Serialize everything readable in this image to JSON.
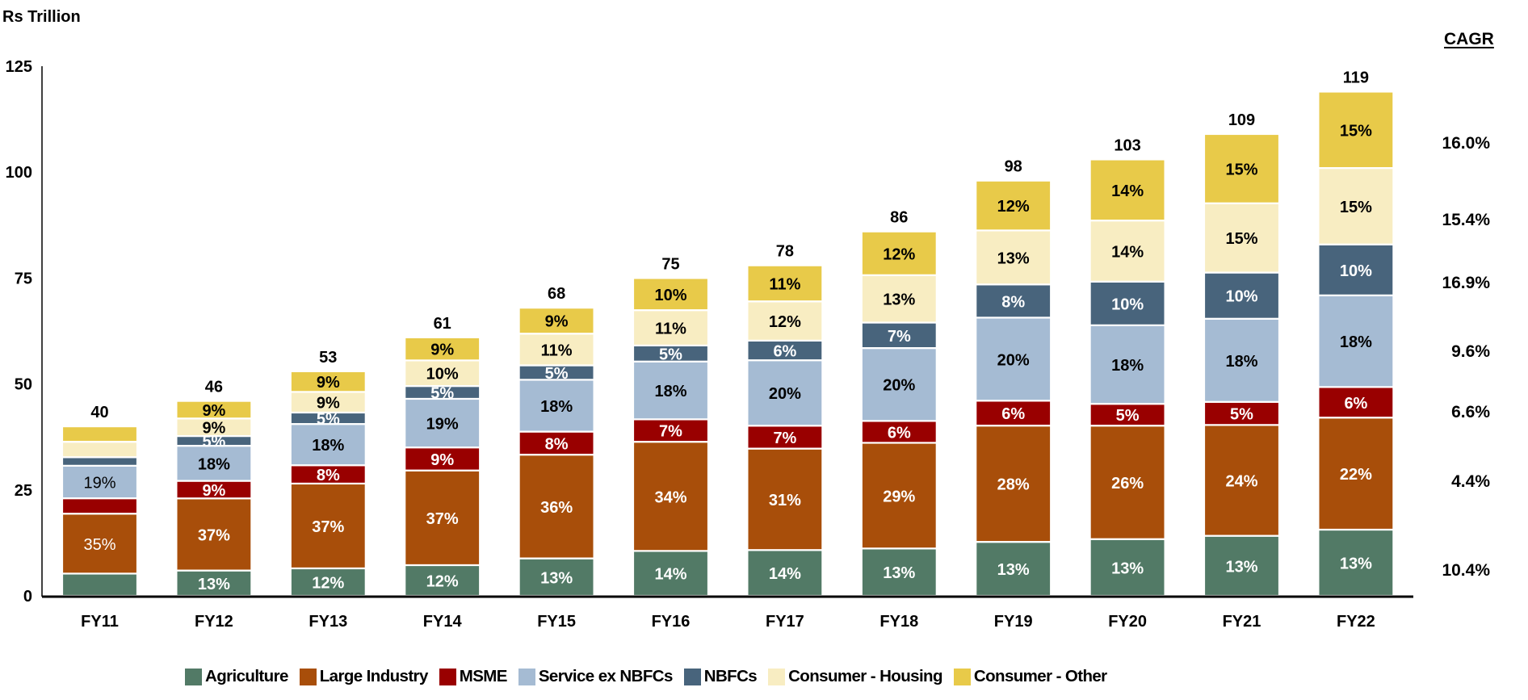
{
  "chart_data": {
    "type": "bar",
    "stacked": true,
    "unit_label": "Rs Trillion",
    "ylim": [
      0,
      125
    ],
    "yticks": [
      0,
      25,
      50,
      75,
      100,
      125
    ],
    "grid": false,
    "legend_position": "bottom",
    "categories": [
      "FY11",
      "FY12",
      "FY13",
      "FY14",
      "FY15",
      "FY16",
      "FY17",
      "FY18",
      "FY19",
      "FY20",
      "FY21",
      "FY22"
    ],
    "totals": [
      40,
      46,
      53,
      61,
      68,
      75,
      78,
      86,
      98,
      103,
      109,
      119
    ],
    "series": [
      {
        "name": "Agriculture",
        "color": "#527A66",
        "label_color": "#ffffff",
        "share_pct": [
          13,
          13,
          12,
          12,
          13,
          14,
          14,
          13,
          13,
          13,
          13,
          13
        ],
        "labels": [
          "",
          "13%",
          "12%",
          "12%",
          "13%",
          "14%",
          "14%",
          "13%",
          "13%",
          "13%",
          "13%",
          "13%"
        ]
      },
      {
        "name": "Large Industry",
        "color": "#A84E0A",
        "label_color": "#ffffff",
        "share_pct": [
          35,
          37,
          37,
          37,
          36,
          34,
          31,
          29,
          28,
          26,
          24,
          22
        ],
        "labels": [
          "35%",
          "37%",
          "37%",
          "37%",
          "36%",
          "34%",
          "31%",
          "29%",
          "28%",
          "26%",
          "24%",
          "22%"
        ]
      },
      {
        "name": "MSME",
        "color": "#990000",
        "label_color": "#ffffff",
        "share_pct": [
          9,
          9,
          8,
          9,
          8,
          7,
          7,
          6,
          6,
          5,
          5,
          6
        ],
        "labels": [
          "",
          "9%",
          "8%",
          "9%",
          "8%",
          "7%",
          "7%",
          "6%",
          "6%",
          "5%",
          "5%",
          "6%"
        ]
      },
      {
        "name": "Service ex NBFCs",
        "color": "#A5BBD3",
        "label_color": "#000000",
        "share_pct": [
          19,
          18,
          18,
          19,
          18,
          18,
          20,
          20,
          20,
          18,
          18,
          18
        ],
        "labels": [
          "19%",
          "18%",
          "18%",
          "19%",
          "18%",
          "18%",
          "20%",
          "20%",
          "20%",
          "18%",
          "18%",
          "18%"
        ]
      },
      {
        "name": "NBFCs",
        "color": "#48647C",
        "label_color": "#ffffff",
        "share_pct": [
          5,
          5,
          5,
          5,
          5,
          5,
          6,
          7,
          8,
          10,
          10,
          10
        ],
        "labels": [
          "",
          "5%",
          "5%",
          "5%",
          "5%",
          "5%",
          "6%",
          "7%",
          "8%",
          "10%",
          "10%",
          "10%"
        ]
      },
      {
        "name": "Consumer - Housing",
        "color": "#F8EDC2",
        "label_color": "#000000",
        "share_pct": [
          9,
          9,
          9,
          10,
          11,
          11,
          12,
          13,
          13,
          14,
          15,
          15
        ],
        "labels": [
          "",
          "9%",
          "9%",
          "10%",
          "11%",
          "11%",
          "12%",
          "13%",
          "13%",
          "14%",
          "15%",
          "15%"
        ]
      },
      {
        "name": "Consumer - Other",
        "color": "#E8CA49",
        "label_color": "#000000",
        "share_pct": [
          9,
          9,
          9,
          9,
          9,
          10,
          11,
          12,
          12,
          14,
          15,
          15
        ],
        "labels": [
          "",
          "9%",
          "9%",
          "9%",
          "9%",
          "10%",
          "11%",
          "12%",
          "12%",
          "14%",
          "15%",
          "15%"
        ]
      }
    ],
    "cagr": {
      "title": "CAGR",
      "values": [
        "16.0%",
        "15.4%",
        "16.9%",
        "9.6%",
        "6.6%",
        "4.4%",
        "10.4%"
      ],
      "series_order": [
        "Consumer - Other",
        "Consumer - Housing",
        "NBFCs",
        "Service ex NBFCs",
        "MSME",
        "Large Industry",
        "Agriculture"
      ]
    }
  }
}
